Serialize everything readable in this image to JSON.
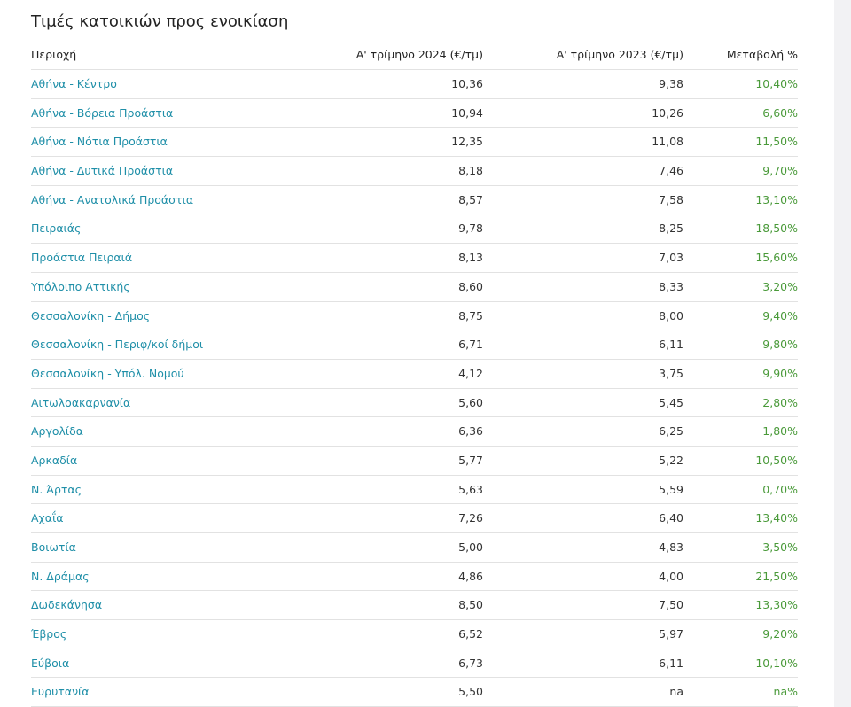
{
  "title": "Τιμές κατοικιών προς ενοικίαση",
  "columns": {
    "region": "Περιοχή",
    "q1_2024": "Α' τρίμηνο 2024 (€/τμ)",
    "q1_2023": "Α' τρίμηνο 2023 (€/τμ)",
    "change": "Μεταβολή %"
  },
  "colors": {
    "link": "#1f8fa8",
    "positive_change": "#4a9a3a",
    "text": "#222222"
  },
  "rows": [
    {
      "region": "Αθήνα - Κέντρο",
      "q1_2024": "10,36",
      "q1_2023": "9,38",
      "change": "10,40%"
    },
    {
      "region": "Αθήνα - Βόρεια Προάστια",
      "q1_2024": "10,94",
      "q1_2023": "10,26",
      "change": "6,60%"
    },
    {
      "region": "Αθήνα - Νότια Προάστια",
      "q1_2024": "12,35",
      "q1_2023": "11,08",
      "change": "11,50%"
    },
    {
      "region": "Αθήνα - Δυτικά Προάστια",
      "q1_2024": "8,18",
      "q1_2023": "7,46",
      "change": "9,70%"
    },
    {
      "region": "Αθήνα - Ανατολικά Προάστια",
      "q1_2024": "8,57",
      "q1_2023": "7,58",
      "change": "13,10%"
    },
    {
      "region": "Πειραιάς",
      "q1_2024": "9,78",
      "q1_2023": "8,25",
      "change": "18,50%"
    },
    {
      "region": "Προάστια Πειραιά",
      "q1_2024": "8,13",
      "q1_2023": "7,03",
      "change": "15,60%"
    },
    {
      "region": "Υπόλοιπο Αττικής",
      "q1_2024": "8,60",
      "q1_2023": "8,33",
      "change": "3,20%"
    },
    {
      "region": "Θεσσαλονίκη - Δήμος",
      "q1_2024": "8,75",
      "q1_2023": "8,00",
      "change": "9,40%"
    },
    {
      "region": "Θεσσαλονίκη - Περιφ/κοί δήμοι",
      "q1_2024": "6,71",
      "q1_2023": "6,11",
      "change": "9,80%"
    },
    {
      "region": "Θεσσαλονίκη - Υπόλ. Νομού",
      "q1_2024": "4,12",
      "q1_2023": "3,75",
      "change": "9,90%"
    },
    {
      "region": "Αιτωλοακαρνανία",
      "q1_2024": "5,60",
      "q1_2023": "5,45",
      "change": "2,80%"
    },
    {
      "region": "Αργολίδα",
      "q1_2024": "6,36",
      "q1_2023": "6,25",
      "change": "1,80%"
    },
    {
      "region": "Αρκαδία",
      "q1_2024": "5,77",
      "q1_2023": "5,22",
      "change": "10,50%"
    },
    {
      "region": "Ν. Άρτας",
      "q1_2024": "5,63",
      "q1_2023": "5,59",
      "change": "0,70%"
    },
    {
      "region": "Αχαΐα",
      "q1_2024": "7,26",
      "q1_2023": "6,40",
      "change": "13,40%"
    },
    {
      "region": "Βοιωτία",
      "q1_2024": "5,00",
      "q1_2023": "4,83",
      "change": "3,50%"
    },
    {
      "region": "Ν. Δράμας",
      "q1_2024": "4,86",
      "q1_2023": "4,00",
      "change": "21,50%"
    },
    {
      "region": "Δωδεκάνησα",
      "q1_2024": "8,50",
      "q1_2023": "7,50",
      "change": "13,30%"
    },
    {
      "region": "Έβρος",
      "q1_2024": "6,52",
      "q1_2023": "5,97",
      "change": "9,20%"
    },
    {
      "region": "Εύβοια",
      "q1_2024": "6,73",
      "q1_2023": "6,11",
      "change": "10,10%"
    },
    {
      "region": "Ευρυτανία",
      "q1_2024": "5,50",
      "q1_2023": "na",
      "change": "na%"
    }
  ]
}
